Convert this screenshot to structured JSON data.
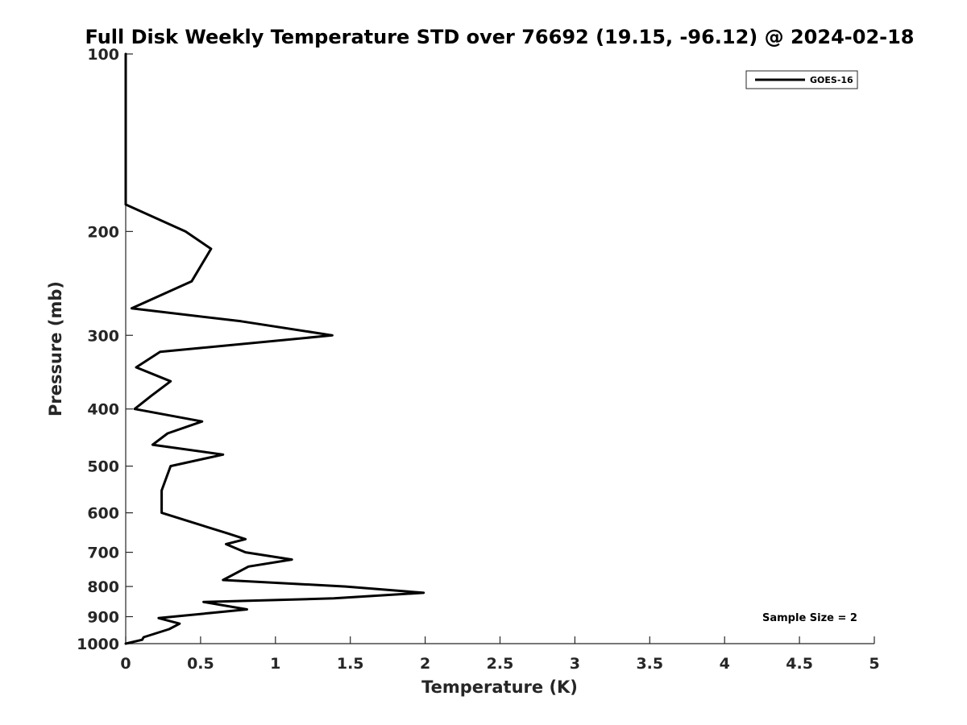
{
  "chart_data": {
    "type": "line",
    "title": "Full Disk Weekly Temperature STD over 76692 (19.15, -96.12) @ 2024-02-18",
    "xlabel": "Temperature (K)",
    "ylabel": "Pressure (mb)",
    "xlim": [
      0,
      5
    ],
    "ylim": [
      100,
      1000
    ],
    "y_scale": "log",
    "y_reversed": true,
    "x_ticks": [
      0,
      0.5,
      1,
      1.5,
      2,
      2.5,
      3,
      3.5,
      4,
      4.5,
      5
    ],
    "x_tick_labels": [
      "0",
      "0.5",
      "1",
      "1.5",
      "2",
      "2.5",
      "3",
      "3.5",
      "4",
      "4.5",
      "5"
    ],
    "y_ticks": [
      100,
      200,
      300,
      400,
      500,
      600,
      700,
      800,
      900,
      1000
    ],
    "y_tick_labels": [
      "100",
      "200",
      "300",
      "400",
      "500",
      "600",
      "700",
      "800",
      "900",
      "1000"
    ],
    "grid": false,
    "legend_position": "top-right",
    "series": [
      {
        "name": "GOES-16",
        "color": "#000000",
        "points": [
          {
            "x": 0.0,
            "y": 100
          },
          {
            "x": 0.0,
            "y": 150
          },
          {
            "x": 0.0,
            "y": 180
          },
          {
            "x": 0.4,
            "y": 200
          },
          {
            "x": 0.57,
            "y": 214
          },
          {
            "x": 0.44,
            "y": 243
          },
          {
            "x": 0.04,
            "y": 270
          },
          {
            "x": 0.77,
            "y": 284
          },
          {
            "x": 1.38,
            "y": 300
          },
          {
            "x": 0.23,
            "y": 320
          },
          {
            "x": 0.07,
            "y": 340
          },
          {
            "x": 0.3,
            "y": 359
          },
          {
            "x": 0.17,
            "y": 380
          },
          {
            "x": 0.06,
            "y": 400
          },
          {
            "x": 0.51,
            "y": 420
          },
          {
            "x": 0.28,
            "y": 440
          },
          {
            "x": 0.18,
            "y": 460
          },
          {
            "x": 0.65,
            "y": 478
          },
          {
            "x": 0.3,
            "y": 500
          },
          {
            "x": 0.24,
            "y": 550
          },
          {
            "x": 0.24,
            "y": 600
          },
          {
            "x": 0.68,
            "y": 650
          },
          {
            "x": 0.8,
            "y": 665
          },
          {
            "x": 0.67,
            "y": 678
          },
          {
            "x": 0.8,
            "y": 700
          },
          {
            "x": 1.11,
            "y": 720
          },
          {
            "x": 0.82,
            "y": 740
          },
          {
            "x": 0.65,
            "y": 780
          },
          {
            "x": 1.47,
            "y": 800
          },
          {
            "x": 1.99,
            "y": 820
          },
          {
            "x": 1.39,
            "y": 838
          },
          {
            "x": 0.52,
            "y": 850
          },
          {
            "x": 0.81,
            "y": 875
          },
          {
            "x": 0.22,
            "y": 905
          },
          {
            "x": 0.36,
            "y": 925
          },
          {
            "x": 0.29,
            "y": 945
          },
          {
            "x": 0.12,
            "y": 975
          },
          {
            "x": 0.11,
            "y": 985
          },
          {
            "x": 0.0,
            "y": 1000
          }
        ]
      }
    ],
    "annotation": "Sample Size = 2"
  }
}
